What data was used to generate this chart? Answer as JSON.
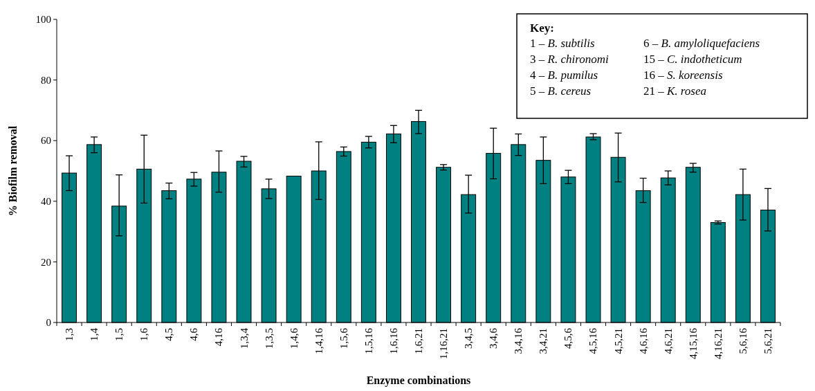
{
  "chart_data": {
    "type": "bar",
    "xlabel": "Enzyme combinations",
    "ylabel": "% Biofilm removal",
    "categories": [
      "1,3",
      "1,4",
      "1,5",
      "1,6",
      "4,5",
      "4,6",
      "4,16",
      "1,3,4",
      "1,3,5",
      "1,4,6",
      "1,4,16",
      "1,5,6",
      "1,5,16",
      "1,6,16",
      "1,6,21",
      "1,16,21",
      "3,4,5",
      "3,4,6",
      "3,4,16",
      "3,4,21",
      "4,5,6",
      "4,5,16",
      "4,5,21",
      "4,6,16",
      "4,6,21",
      "4,15,16",
      "4,16,21",
      "5,6,16",
      "5,6,21"
    ],
    "values": [
      49.3,
      58.7,
      38.4,
      50.6,
      43.5,
      47.3,
      49.6,
      53.2,
      44.1,
      48.3,
      50,
      56.4,
      59.5,
      62.2,
      66.3,
      51.2,
      42.2,
      55.8,
      58.7,
      53.5,
      48,
      61.2,
      54.5,
      43.5,
      47.7,
      51.2,
      33,
      42.2,
      37.1
    ],
    "errors": [
      [
        43.5,
        55
      ],
      [
        56,
        61.2
      ],
      [
        28.6,
        48.7
      ],
      [
        39.4,
        61.8
      ],
      [
        40.8,
        46
      ],
      [
        45,
        49.5
      ],
      [
        43,
        56.6
      ],
      [
        51.3,
        54.8
      ],
      [
        40.9,
        47.3
      ],
      null,
      [
        40.6,
        59.6
      ],
      [
        54.9,
        57.9
      ],
      [
        57.6,
        61.4
      ],
      [
        59.3,
        65
      ],
      [
        62.3,
        70
      ],
      [
        50.3,
        52.1
      ],
      [
        36.1,
        48.6
      ],
      [
        47.4,
        64.1
      ],
      [
        55.1,
        62.2
      ],
      [
        45.8,
        61.2
      ],
      [
        45.8,
        50.2
      ],
      [
        60.3,
        62.3
      ],
      [
        46.4,
        62.5
      ],
      [
        39.6,
        47.6
      ],
      [
        45.4,
        50
      ],
      [
        49.6,
        52.5
      ],
      [
        32.5,
        33.5
      ],
      [
        33.8,
        50.6
      ],
      [
        30.2,
        44.2
      ]
    ],
    "color": "#008080",
    "ylim": [
      0,
      100
    ],
    "yticks": [
      0,
      20,
      40,
      60,
      80,
      100
    ],
    "grid": false,
    "annotations": [
      "Key:",
      "1 – B. subtilis",
      "3 – R. chironomi",
      "4 – B. pumilus",
      "5 – B. cereus",
      "6 – B. amyloliquefaciens",
      "15 – C. indotheticum",
      "16 – S. koreensis",
      "21 – K. rosea"
    ]
  }
}
